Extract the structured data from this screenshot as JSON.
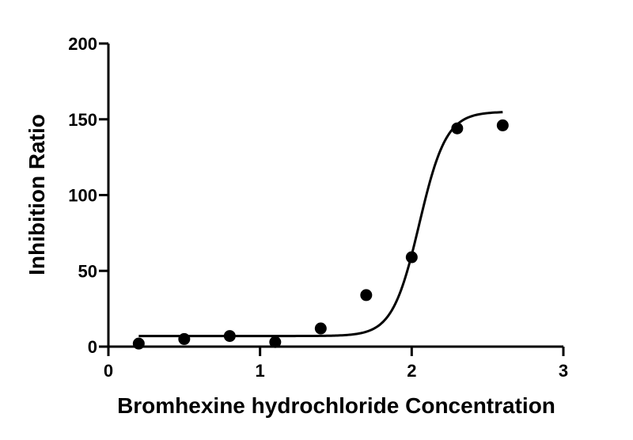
{
  "chart_data": {
    "type": "scatter",
    "title": "",
    "xlabel": "Bromhexine hydrochloride Concentration",
    "ylabel": "Inhibition Ratio",
    "xlim": [
      0,
      3
    ],
    "ylim": [
      0,
      200
    ],
    "x_ticks": [
      "0",
      "1",
      "2",
      "3"
    ],
    "y_ticks": [
      "0",
      "50",
      "100",
      "150",
      "200"
    ],
    "grid": false,
    "legend": "none",
    "series": [
      {
        "x": [
          0.2,
          0.5,
          0.8,
          1.1,
          1.4,
          1.7,
          2.0,
          2.3,
          2.6
        ],
        "y": [
          2,
          5,
          7,
          3,
          12,
          34,
          59,
          144,
          146
        ]
      }
    ],
    "fit_curve": {
      "model": "sigmoidal",
      "bottom": 7,
      "top": 155,
      "x50": 2.05,
      "hill": 4.9,
      "x_range": [
        0.2,
        2.6
      ]
    },
    "colors": {
      "points": "#000000",
      "curve": "#000000"
    }
  }
}
